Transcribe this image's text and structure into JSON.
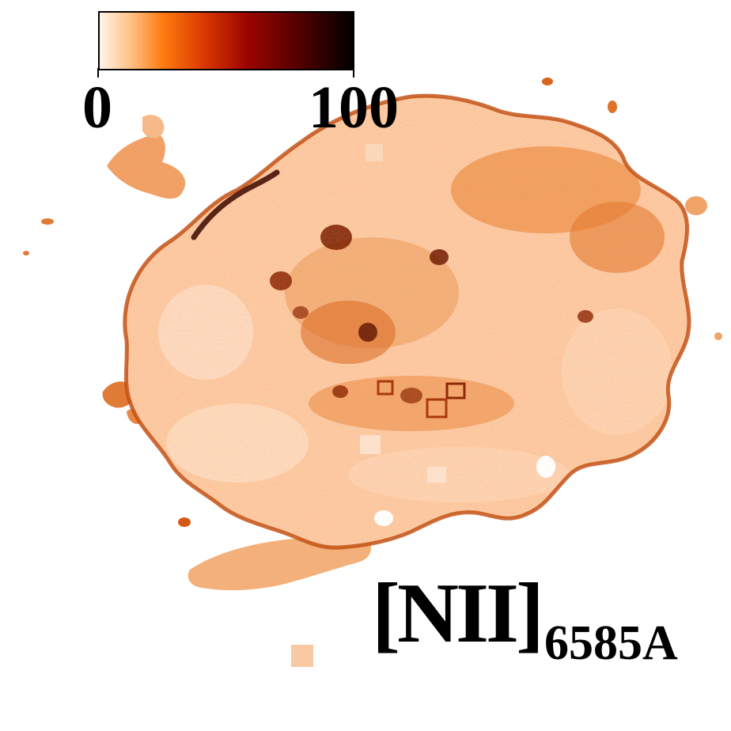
{
  "image": {
    "description_label": "",
    "background": "#ffffff"
  },
  "colorbar": {
    "min_label": "0",
    "max_label": "100",
    "colormap": [
      "#fff4ea",
      "#ffc287",
      "#ff7a10",
      "#d83600",
      "#9c0500",
      "#560000",
      "#000000"
    ]
  },
  "line_label": {
    "ion": "[NII]",
    "wavelength": "6585A"
  },
  "map_colors": {
    "base": "#fcc9a3",
    "light": "#fde5d2",
    "mid": "#f39a56",
    "orange": "#e8731f",
    "dark": "#b03c05",
    "darkest": "#5a1200"
  }
}
